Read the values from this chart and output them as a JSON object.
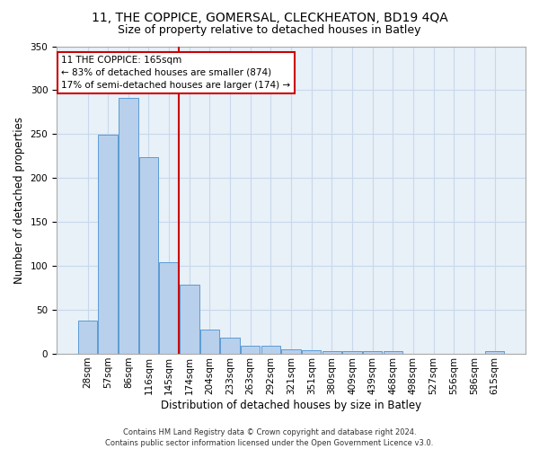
{
  "title1": "11, THE COPPICE, GOMERSAL, CLECKHEATON, BD19 4QA",
  "title2": "Size of property relative to detached houses in Batley",
  "xlabel": "Distribution of detached houses by size in Batley",
  "ylabel": "Number of detached properties",
  "categories": [
    "28sqm",
    "57sqm",
    "86sqm",
    "116sqm",
    "145sqm",
    "174sqm",
    "204sqm",
    "233sqm",
    "263sqm",
    "292sqm",
    "321sqm",
    "351sqm",
    "380sqm",
    "409sqm",
    "439sqm",
    "468sqm",
    "498sqm",
    "527sqm",
    "556sqm",
    "586sqm",
    "615sqm"
  ],
  "values": [
    38,
    249,
    291,
    224,
    104,
    79,
    28,
    18,
    9,
    9,
    5,
    4,
    3,
    3,
    3,
    3,
    0,
    0,
    0,
    0,
    3
  ],
  "bar_color": "#b8d0eb",
  "bar_edge_color": "#5b9bd5",
  "vline_index": 4.5,
  "vline_color": "#cc0000",
  "annotation_text": "11 THE COPPICE: 165sqm\n← 83% of detached houses are smaller (874)\n17% of semi-detached houses are larger (174) →",
  "annotation_box_facecolor": "#ffffff",
  "annotation_box_edgecolor": "#cc0000",
  "ylim_max": 350,
  "yticks": [
    0,
    50,
    100,
    150,
    200,
    250,
    300,
    350
  ],
  "footnote_line1": "Contains HM Land Registry data © Crown copyright and database right 2024.",
  "footnote_line2": "Contains public sector information licensed under the Open Government Licence v3.0.",
  "bg_color": "#e8f0f8",
  "grid_color": "#c8d8ec",
  "title1_fontsize": 10,
  "title2_fontsize": 9,
  "xlabel_fontsize": 8.5,
  "ylabel_fontsize": 8.5,
  "tick_fontsize": 7.5,
  "annot_fontsize": 7.5,
  "footnote_fontsize": 6.0
}
